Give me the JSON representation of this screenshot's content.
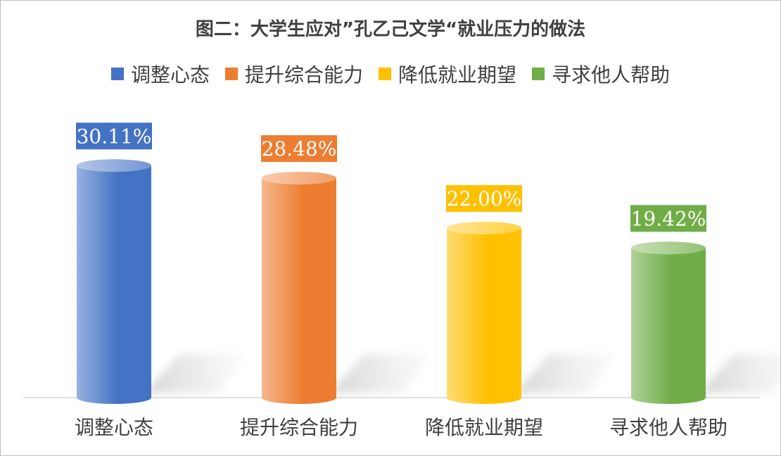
{
  "chart_data": {
    "type": "bar",
    "title": "图二：大学生应对”孔乙己文学“就业压力的做法",
    "categories": [
      "调整心态",
      "提升综合能力",
      "降低就业期望",
      "寻求他人帮助"
    ],
    "values": [
      30.11,
      28.48,
      22.0,
      19.42
    ],
    "value_labels": [
      "30.11%",
      "28.48%",
      "22.00%",
      "19.42%"
    ],
    "unit": "%",
    "style": "3d-cylinder",
    "colors": [
      "#4472C4",
      "#ED7D31",
      "#FFC000",
      "#70AD47"
    ],
    "legend": {
      "position": "top",
      "entries": [
        "调整心态",
        "提升综合能力",
        "降低就业期望",
        "寻求他人帮助"
      ]
    },
    "grid": false,
    "xlabel": "",
    "ylabel": ""
  }
}
